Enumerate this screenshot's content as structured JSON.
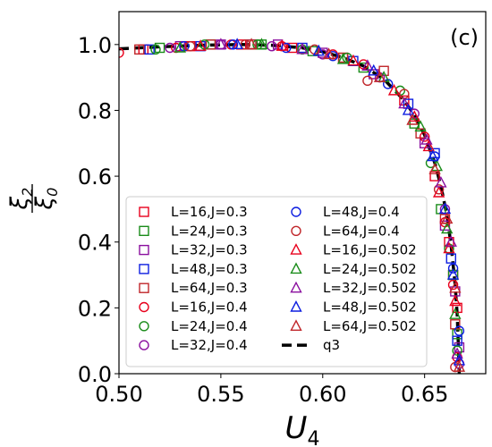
{
  "chart_data": {
    "type": "scatter",
    "panel_label": "(c)",
    "xlabel": "U",
    "xlabel_sub": "4",
    "ylabel_num": "ξ",
    "ylabel_num_sub": "2",
    "ylabel_den": "ξ",
    "ylabel_den_sub": "0",
    "xlim": [
      0.5,
      0.68
    ],
    "ylim": [
      0.0,
      1.1
    ],
    "xticks": [
      0.5,
      0.55,
      0.6,
      0.65
    ],
    "xtick_labels": [
      "0.50",
      "0.55",
      "0.60",
      "0.65"
    ],
    "yticks": [
      0.0,
      0.2,
      0.4,
      0.6,
      0.8,
      1.0
    ],
    "ytick_labels": [
      "0.0",
      "0.2",
      "0.4",
      "0.6",
      "0.8",
      "1.0"
    ],
    "grid": false,
    "legend_position": "lower-left",
    "legend_columns": 2,
    "series": [
      {
        "name": "L=16,J=0.3",
        "marker": "square",
        "color": "#e8001c",
        "x": [
          0.512,
          0.535,
          0.56,
          0.585,
          0.61,
          0.64,
          0.655,
          0.662,
          0.664,
          0.666
        ],
        "y": [
          0.985,
          0.995,
          1.0,
          0.99,
          0.96,
          0.83,
          0.6,
          0.4,
          0.3,
          0.2
        ]
      },
      {
        "name": "L=24,J=0.3",
        "marker": "square",
        "color": "#1a8c1a",
        "x": [
          0.52,
          0.545,
          0.57,
          0.595,
          0.62,
          0.645,
          0.658,
          0.664,
          0.666
        ],
        "y": [
          0.99,
          1.0,
          1.0,
          0.98,
          0.93,
          0.76,
          0.5,
          0.3,
          0.12
        ]
      },
      {
        "name": "L=32,J=0.3",
        "marker": "square",
        "color": "#8a0f9e",
        "x": [
          0.53,
          0.55,
          0.578,
          0.6,
          0.625,
          0.65,
          0.66,
          0.665,
          0.667
        ],
        "y": [
          0.995,
          1.0,
          1.0,
          0.975,
          0.91,
          0.7,
          0.45,
          0.25,
          0.08
        ]
      },
      {
        "name": "L=48,J=0.3",
        "marker": "square",
        "color": "#0d1ee0",
        "x": [
          0.515,
          0.54,
          0.565,
          0.59,
          0.615,
          0.642,
          0.655,
          0.663,
          0.666
        ],
        "y": [
          0.985,
          0.995,
          1.0,
          0.99,
          0.95,
          0.82,
          0.67,
          0.35,
          0.1
        ]
      },
      {
        "name": "L=64,J=0.3",
        "marker": "square",
        "color": "#c0262a",
        "x": [
          0.51,
          0.545,
          0.565,
          0.61,
          0.63,
          0.648,
          0.66,
          0.665
        ],
        "y": [
          0.985,
          1.0,
          1.0,
          0.96,
          0.92,
          0.73,
          0.47,
          0.15
        ]
      },
      {
        "name": "L=16,J=0.4",
        "marker": "circle",
        "color": "#e8001c",
        "x": [
          0.5,
          0.528,
          0.555,
          0.58,
          0.605,
          0.62,
          0.65,
          0.66,
          0.664,
          0.666
        ],
        "y": [
          0.975,
          0.99,
          1.0,
          0.995,
          0.97,
          0.94,
          0.72,
          0.46,
          0.27,
          0.05
        ]
      },
      {
        "name": "L=24,J=0.4",
        "marker": "circle",
        "color": "#1a8c1a",
        "x": [
          0.518,
          0.542,
          0.568,
          0.59,
          0.612,
          0.638,
          0.653,
          0.662,
          0.666
        ],
        "y": [
          0.985,
          1.0,
          1.0,
          0.985,
          0.96,
          0.86,
          0.64,
          0.38,
          0.07
        ]
      },
      {
        "name": "L=32,J=0.4",
        "marker": "circle",
        "color": "#8a0f9e",
        "x": [
          0.525,
          0.55,
          0.575,
          0.6,
          0.628,
          0.645,
          0.66,
          0.667
        ],
        "y": [
          0.99,
          1.0,
          0.995,
          0.97,
          0.9,
          0.79,
          0.5,
          0.03
        ]
      },
      {
        "name": "L=48,J=0.4",
        "marker": "circle",
        "color": "#0d1ee0",
        "x": [
          0.532,
          0.556,
          0.582,
          0.605,
          0.632,
          0.655,
          0.664,
          0.667
        ],
        "y": [
          0.995,
          1.0,
          0.99,
          0.965,
          0.88,
          0.66,
          0.32,
          0.13
        ]
      },
      {
        "name": "L=64,J=0.4",
        "marker": "circle",
        "color": "#c0262a",
        "x": [
          0.535,
          0.562,
          0.596,
          0.622,
          0.64,
          0.657,
          0.665
        ],
        "y": [
          0.995,
          1.0,
          0.985,
          0.89,
          0.85,
          0.56,
          0.02
        ]
      },
      {
        "name": "L=16,J=0.502",
        "marker": "triangle",
        "color": "#e8001c",
        "x": [
          0.54,
          0.58,
          0.615,
          0.635,
          0.645,
          0.652,
          0.657,
          0.662,
          0.665
        ],
        "y": [
          0.995,
          0.995,
          0.95,
          0.86,
          0.78,
          0.69,
          0.55,
          0.38,
          0.22
        ]
      },
      {
        "name": "L=24,J=0.502",
        "marker": "triangle",
        "color": "#1a8c1a",
        "x": [
          0.53,
          0.57,
          0.61,
          0.63,
          0.648,
          0.656,
          0.661,
          0.665
        ],
        "y": [
          0.99,
          1.0,
          0.955,
          0.9,
          0.75,
          0.63,
          0.44,
          0.18
        ]
      },
      {
        "name": "L=32,J=0.502",
        "marker": "triangle",
        "color": "#8a0f9e",
        "x": [
          0.55,
          0.59,
          0.622,
          0.64,
          0.651,
          0.658,
          0.663,
          0.666
        ],
        "y": [
          1.0,
          0.985,
          0.935,
          0.82,
          0.71,
          0.58,
          0.4,
          0.06
        ]
      },
      {
        "name": "L=48,J=0.502",
        "marker": "triangle",
        "color": "#0d1ee0",
        "x": [
          0.558,
          0.598,
          0.625,
          0.642,
          0.654,
          0.66,
          0.664,
          0.667
        ],
        "y": [
          1.0,
          0.98,
          0.92,
          0.8,
          0.66,
          0.5,
          0.3,
          0.04
        ]
      },
      {
        "name": "L=64,J=0.502",
        "marker": "triangle",
        "color": "#c0262a",
        "x": [
          0.565,
          0.603,
          0.628,
          0.644,
          0.655,
          0.661,
          0.665,
          0.667
        ],
        "y": [
          1.0,
          0.97,
          0.9,
          0.77,
          0.62,
          0.47,
          0.26,
          0.02
        ]
      }
    ],
    "fit_line": {
      "name": "q3",
      "style": "dashed",
      "color": "#000000",
      "x": [
        0.5,
        0.52,
        0.54,
        0.56,
        0.575,
        0.59,
        0.6,
        0.61,
        0.62,
        0.63,
        0.64,
        0.645,
        0.65,
        0.655,
        0.658,
        0.661,
        0.663,
        0.665,
        0.666,
        0.6665,
        0.667
      ],
      "y": [
        0.987,
        0.993,
        0.998,
        1.0,
        0.998,
        0.99,
        0.978,
        0.96,
        0.935,
        0.895,
        0.83,
        0.785,
        0.725,
        0.64,
        0.57,
        0.48,
        0.39,
        0.27,
        0.18,
        0.1,
        0.0
      ]
    }
  }
}
